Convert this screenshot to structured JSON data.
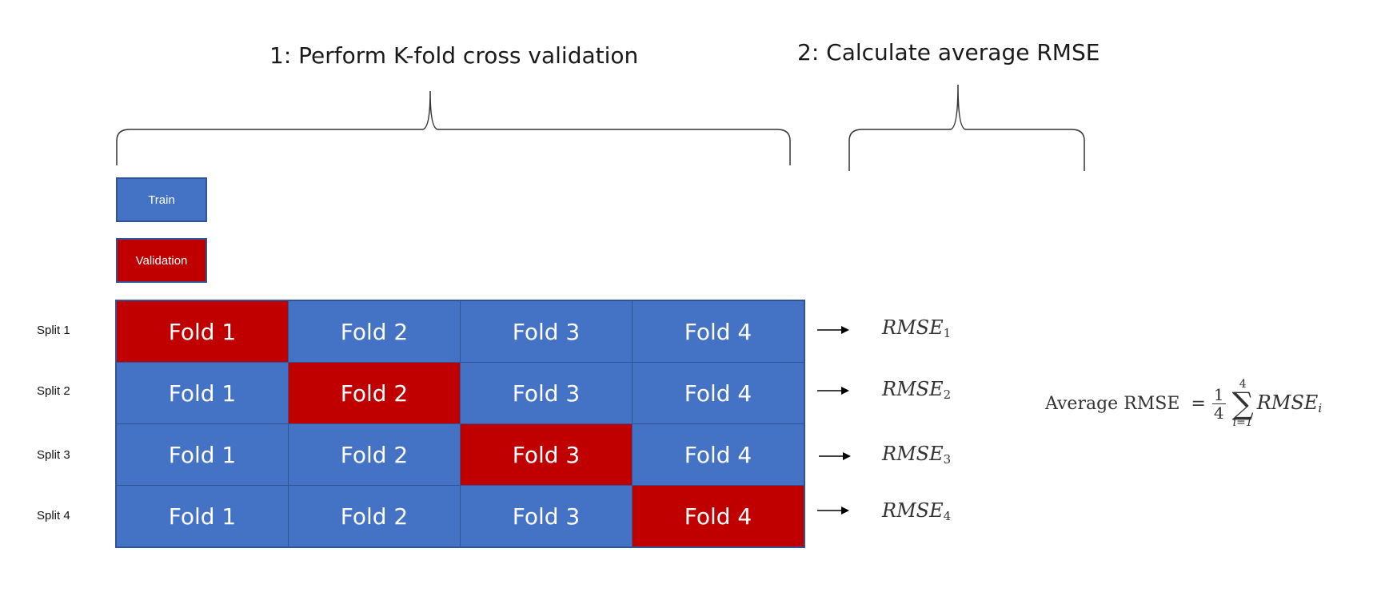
{
  "titles": {
    "step1": "1: Perform K-fold cross validation",
    "step2": "2: Calculate average RMSE"
  },
  "legend": {
    "train": "Train",
    "validation": "Validation"
  },
  "colors": {
    "train": "#4472c4",
    "validation": "#c00000",
    "border": "#2f5597"
  },
  "splits": [
    {
      "label": "Split 1",
      "validation_fold": 1,
      "rmse": "RMSE",
      "rmse_sub": "1"
    },
    {
      "label": "Split 2",
      "validation_fold": 2,
      "rmse": "RMSE",
      "rmse_sub": "2"
    },
    {
      "label": "Split 3",
      "validation_fold": 3,
      "rmse": "RMSE",
      "rmse_sub": "3"
    },
    {
      "label": "Split 4",
      "validation_fold": 4,
      "rmse": "RMSE",
      "rmse_sub": "4"
    }
  ],
  "folds": [
    "Fold 1",
    "Fold 2",
    "Fold 3",
    "Fold 4"
  ],
  "formula": {
    "label": "Average RMSE",
    "equals": "=",
    "numerator": "1",
    "denominator": "4",
    "upper": "4",
    "sigma": "∑",
    "lower": "i=1",
    "term": "RMSE",
    "term_sub": "i"
  }
}
